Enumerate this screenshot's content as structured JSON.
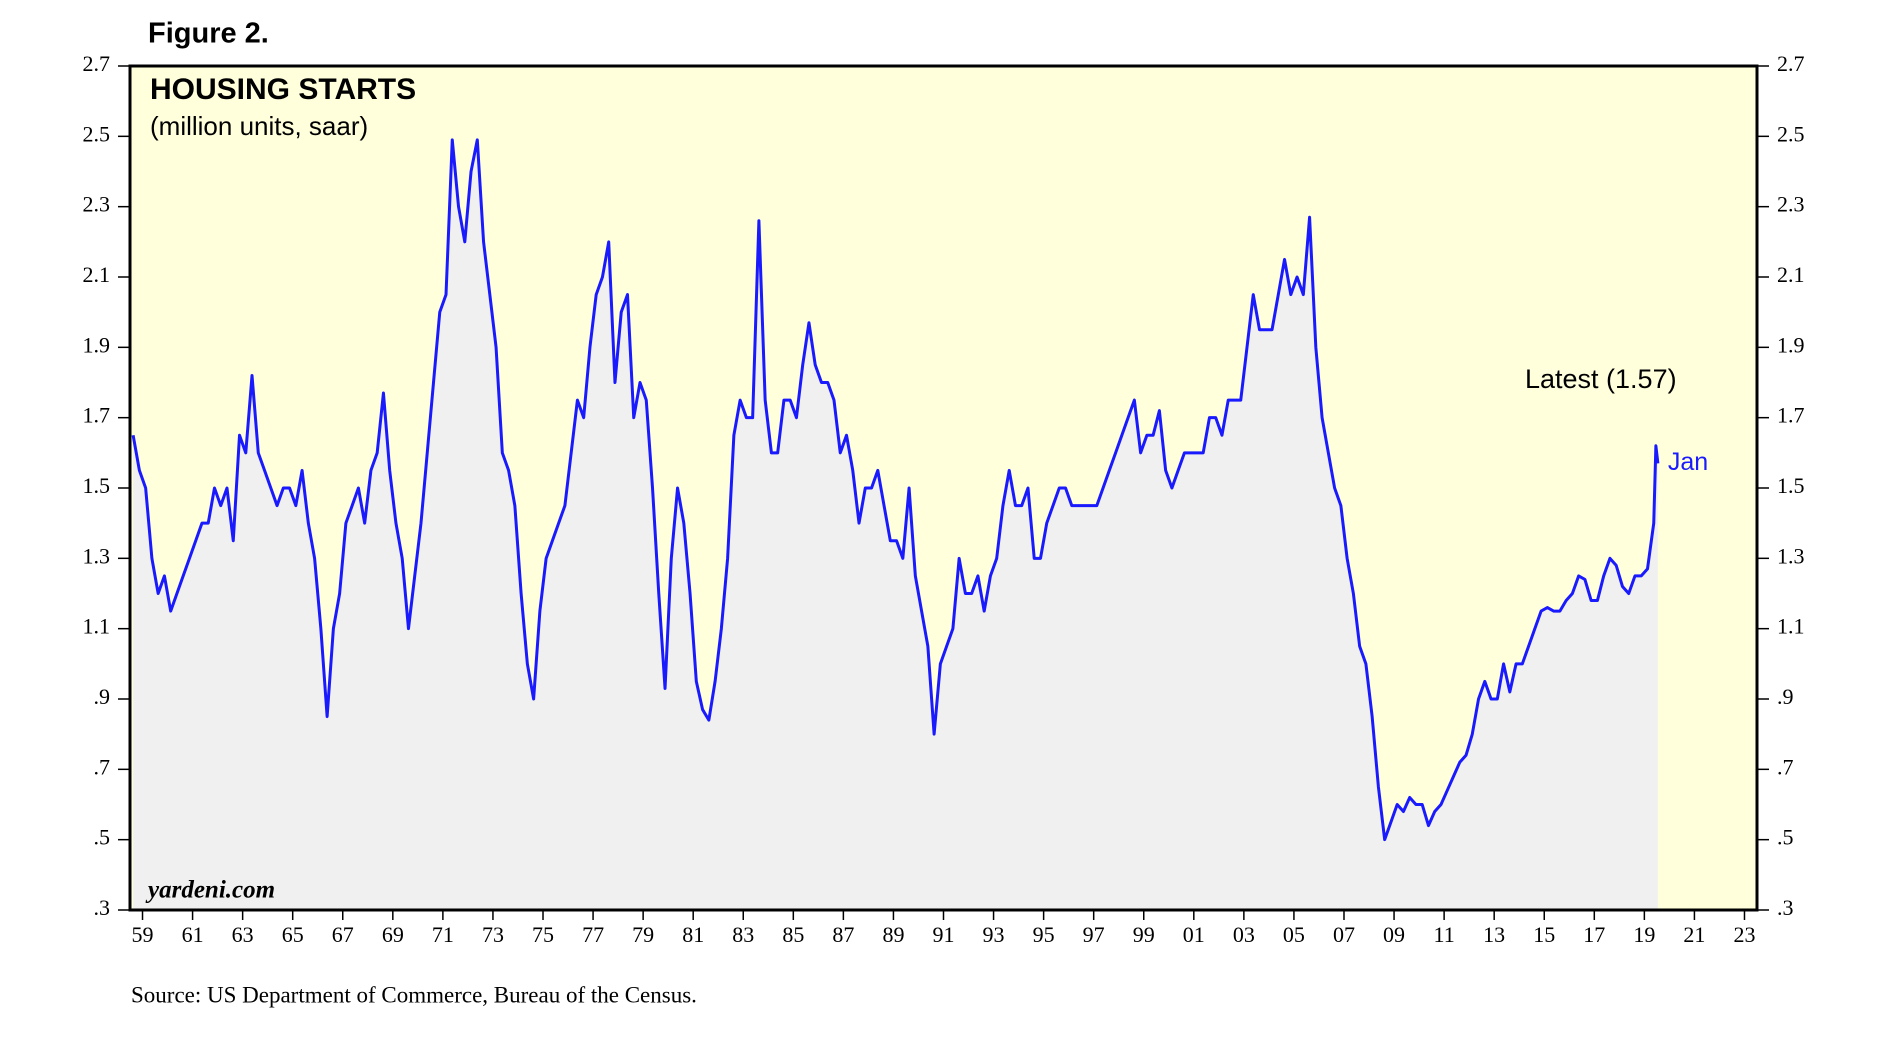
{
  "chart_data": {
    "type": "area-line",
    "figure_label": "Figure 2.",
    "title": "HOUSING STARTS",
    "subtitle": "(million units, saar)",
    "watermark": "yardeni.com",
    "annotation": "Latest (1.57)",
    "end_label": "Jan",
    "source": "Source: US Department of Commerce, Bureau of the Census.",
    "color": "#1a1aff",
    "area_color": "#f0f0f0",
    "background_color": "#ffffdc",
    "xlim": [
      1959,
      2024
    ],
    "ylim": [
      0.3,
      2.7
    ],
    "yticks": [
      {
        "value": 0.3,
        "label": ".3"
      },
      {
        "value": 0.5,
        "label": ".5"
      },
      {
        "value": 0.7,
        "label": ".7"
      },
      {
        "value": 0.9,
        "label": ".9"
      },
      1.1,
      1.3,
      1.5,
      1.7,
      1.9,
      2.1,
      2.3,
      2.5,
      2.7
    ],
    "xticks": [
      {
        "value": 1959.5,
        "label": "59"
      },
      {
        "value": 1961.5,
        "label": "61"
      },
      {
        "value": 1963.5,
        "label": "63"
      },
      {
        "value": 1965.5,
        "label": "65"
      },
      {
        "value": 1967.5,
        "label": "67"
      },
      {
        "value": 1969.5,
        "label": "69"
      },
      {
        "value": 1971.5,
        "label": "71"
      },
      {
        "value": 1973.5,
        "label": "73"
      },
      {
        "value": 1975.5,
        "label": "75"
      },
      {
        "value": 1977.5,
        "label": "77"
      },
      {
        "value": 1979.5,
        "label": "79"
      },
      {
        "value": 1981.5,
        "label": "81"
      },
      {
        "value": 1983.5,
        "label": "83"
      },
      {
        "value": 1985.5,
        "label": "85"
      },
      {
        "value": 1987.5,
        "label": "87"
      },
      {
        "value": 1989.5,
        "label": "89"
      },
      {
        "value": 1991.5,
        "label": "91"
      },
      {
        "value": 1993.5,
        "label": "93"
      },
      {
        "value": 1995.5,
        "label": "95"
      },
      {
        "value": 1997.5,
        "label": "97"
      },
      {
        "value": 1999.5,
        "label": "99"
      },
      {
        "value": 2001.5,
        "label": "01"
      },
      {
        "value": 2003.5,
        "label": "03"
      },
      {
        "value": 2005.5,
        "label": "05"
      },
      {
        "value": 2007.5,
        "label": "07"
      },
      {
        "value": 2009.5,
        "label": "09"
      },
      {
        "value": 2011.5,
        "label": "11"
      },
      {
        "value": 2013.5,
        "label": "13"
      },
      {
        "value": 2015.5,
        "label": "15"
      },
      {
        "value": 2017.5,
        "label": "17"
      },
      {
        "value": 2019.5,
        "label": "19"
      },
      {
        "value": 2021.5,
        "label": "21"
      },
      {
        "value": 2023.5,
        "label": "23"
      }
    ],
    "x": [
      1959.125,
      1959.375,
      1959.625,
      1959.875,
      1960.125,
      1960.375,
      1960.625,
      1960.875,
      1961.125,
      1961.375,
      1961.625,
      1961.875,
      1962.125,
      1962.375,
      1962.625,
      1962.875,
      1963.125,
      1963.375,
      1963.625,
      1963.875,
      1964.125,
      1964.375,
      1964.625,
      1964.875,
      1965.125,
      1965.375,
      1965.625,
      1965.875,
      1966.125,
      1966.375,
      1966.625,
      1966.875,
      1967.125,
      1967.375,
      1967.625,
      1967.875,
      1968.125,
      1968.375,
      1968.625,
      1968.875,
      1969.125,
      1969.375,
      1969.625,
      1969.875,
      1970.125,
      1970.375,
      1970.625,
      1970.875,
      1971.125,
      1971.375,
      1971.625,
      1971.875,
      1972.125,
      1972.375,
      1972.625,
      1972.875,
      1973.125,
      1973.375,
      1973.625,
      1973.875,
      1974.125,
      1974.375,
      1974.625,
      1974.875,
      1975.125,
      1975.375,
      1975.625,
      1975.875,
      1976.125,
      1976.375,
      1976.625,
      1976.875,
      1977.125,
      1977.375,
      1977.625,
      1977.875,
      1978.125,
      1978.375,
      1978.625,
      1978.875,
      1979.125,
      1979.375,
      1979.625,
      1979.875,
      1980.125,
      1980.375,
      1980.625,
      1980.875,
      1981.125,
      1981.375,
      1981.625,
      1981.875,
      1982.125,
      1982.375,
      1982.625,
      1982.875,
      1983.125,
      1983.375,
      1983.625,
      1983.875,
      1984.125,
      1984.375,
      1984.625,
      1984.875,
      1985.125,
      1985.375,
      1985.625,
      1985.875,
      1986.125,
      1986.375,
      1986.625,
      1986.875,
      1987.125,
      1987.375,
      1987.625,
      1987.875,
      1988.125,
      1988.375,
      1988.625,
      1988.875,
      1989.125,
      1989.375,
      1989.625,
      1989.875,
      1990.125,
      1990.375,
      1990.625,
      1990.875,
      1991.125,
      1991.375,
      1991.625,
      1991.875,
      1992.125,
      1992.375,
      1992.625,
      1992.875,
      1993.125,
      1993.375,
      1993.625,
      1993.875,
      1994.125,
      1994.375,
      1994.625,
      1994.875,
      1995.125,
      1995.375,
      1995.625,
      1995.875,
      1996.125,
      1996.375,
      1996.625,
      1996.875,
      1997.125,
      1997.375,
      1997.625,
      1997.875,
      1998.125,
      1998.375,
      1998.625,
      1998.875,
      1999.125,
      1999.375,
      1999.625,
      1999.875,
      2000.125,
      2000.375,
      2000.625,
      2000.875,
      2001.125,
      2001.375,
      2001.625,
      2001.875,
      2002.125,
      2002.375,
      2002.625,
      2002.875,
      2003.125,
      2003.375,
      2003.625,
      2003.875,
      2004.125,
      2004.375,
      2004.625,
      2004.875,
      2005.125,
      2005.375,
      2005.625,
      2005.875,
      2006.125,
      2006.375,
      2006.625,
      2006.875,
      2007.125,
      2007.375,
      2007.625,
      2007.875,
      2008.125,
      2008.375,
      2008.625,
      2008.875,
      2009.125,
      2009.375,
      2009.625,
      2009.875,
      2010.125,
      2010.375,
      2010.625,
      2010.875,
      2011.125,
      2011.375,
      2011.625,
      2011.875,
      2012.125,
      2012.375,
      2012.625,
      2012.875,
      2013.125,
      2013.375,
      2013.625,
      2013.875,
      2014.125,
      2014.375,
      2014.625,
      2014.875,
      2015.125,
      2015.375,
      2015.625,
      2015.875,
      2016.125,
      2016.375,
      2016.625,
      2016.875,
      2017.125,
      2017.375,
      2017.625,
      2017.875,
      2018.125,
      2018.375,
      2018.625,
      2018.875,
      2019.125,
      2019.375,
      2019.625,
      2019.875,
      2019.96,
      2020.04
    ],
    "values": [
      1.65,
      1.55,
      1.5,
      1.3,
      1.2,
      1.25,
      1.15,
      1.2,
      1.25,
      1.3,
      1.35,
      1.4,
      1.4,
      1.5,
      1.45,
      1.5,
      1.35,
      1.65,
      1.6,
      1.82,
      1.6,
      1.55,
      1.5,
      1.45,
      1.5,
      1.5,
      1.45,
      1.55,
      1.4,
      1.3,
      1.1,
      0.85,
      1.1,
      1.2,
      1.4,
      1.45,
      1.5,
      1.4,
      1.55,
      1.6,
      1.77,
      1.55,
      1.4,
      1.3,
      1.1,
      1.25,
      1.4,
      1.6,
      1.8,
      2.0,
      2.05,
      2.49,
      2.3,
      2.2,
      2.4,
      2.49,
      2.2,
      2.05,
      1.9,
      1.6,
      1.55,
      1.45,
      1.2,
      1.0,
      0.9,
      1.15,
      1.3,
      1.35,
      1.4,
      1.45,
      1.6,
      1.75,
      1.7,
      1.9,
      2.05,
      2.1,
      2.2,
      1.8,
      2.0,
      2.05,
      1.7,
      1.8,
      1.75,
      1.5,
      1.2,
      0.93,
      1.3,
      1.5,
      1.4,
      1.2,
      0.95,
      0.87,
      0.84,
      0.95,
      1.1,
      1.3,
      1.65,
      1.75,
      1.7,
      1.7,
      2.26,
      1.75,
      1.6,
      1.6,
      1.75,
      1.75,
      1.7,
      1.85,
      1.97,
      1.85,
      1.8,
      1.8,
      1.75,
      1.6,
      1.65,
      1.55,
      1.4,
      1.5,
      1.5,
      1.55,
      1.45,
      1.35,
      1.35,
      1.3,
      1.5,
      1.25,
      1.15,
      1.05,
      0.8,
      1.0,
      1.05,
      1.1,
      1.3,
      1.2,
      1.2,
      1.25,
      1.15,
      1.25,
      1.3,
      1.45,
      1.55,
      1.45,
      1.45,
      1.5,
      1.3,
      1.3,
      1.4,
      1.45,
      1.5,
      1.5,
      1.45,
      1.45,
      1.45,
      1.45,
      1.45,
      1.5,
      1.55,
      1.6,
      1.65,
      1.7,
      1.75,
      1.6,
      1.65,
      1.65,
      1.72,
      1.55,
      1.5,
      1.55,
      1.6,
      1.6,
      1.6,
      1.6,
      1.7,
      1.7,
      1.65,
      1.75,
      1.75,
      1.75,
      1.9,
      2.05,
      1.95,
      1.95,
      1.95,
      2.05,
      2.15,
      2.05,
      2.1,
      2.05,
      2.27,
      1.9,
      1.7,
      1.6,
      1.5,
      1.45,
      1.3,
      1.2,
      1.05,
      1.0,
      0.85,
      0.65,
      0.5,
      0.55,
      0.6,
      0.58,
      0.62,
      0.6,
      0.6,
      0.54,
      0.58,
      0.6,
      0.64,
      0.68,
      0.72,
      0.74,
      0.8,
      0.9,
      0.95,
      0.9,
      0.9,
      1.0,
      0.92,
      1.0,
      1.0,
      1.05,
      1.1,
      1.15,
      1.16,
      1.15,
      1.15,
      1.18,
      1.2,
      1.25,
      1.24,
      1.18,
      1.18,
      1.25,
      1.3,
      1.28,
      1.22,
      1.2,
      1.25,
      1.25,
      1.27,
      1.4,
      1.62,
      1.57
    ]
  }
}
